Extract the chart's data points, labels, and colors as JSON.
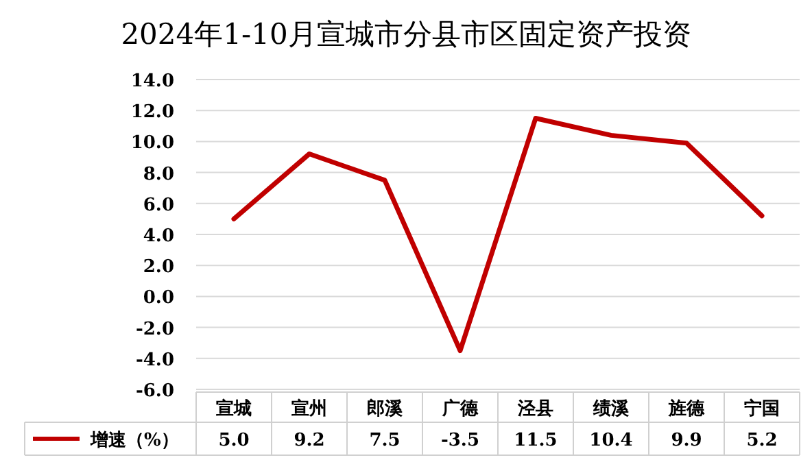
{
  "chart_data": {
    "type": "line",
    "title": "2024年1-10月宣城市分县市区固定资产投资",
    "categories": [
      "宣城",
      "宣州",
      "郎溪",
      "广德",
      "泾县",
      "绩溪",
      "旌德",
      "宁国"
    ],
    "series": [
      {
        "name": "增速（%）",
        "color": "#c00000",
        "values": [
          5.0,
          9.2,
          7.5,
          -3.5,
          11.5,
          10.4,
          9.9,
          5.2
        ],
        "value_labels": [
          "5.0",
          "9.2",
          "7.5",
          "-3.5",
          "11.5",
          "10.4",
          "9.9",
          "5.2"
        ]
      }
    ],
    "ylim": [
      -6,
      14
    ],
    "yticks": [
      {
        "value": -6,
        "label": "-6.0"
      },
      {
        "value": -4,
        "label": "-4.0"
      },
      {
        "value": -2,
        "label": "-2.0"
      },
      {
        "value": 0,
        "label": "0.0"
      },
      {
        "value": 2,
        "label": "2.0"
      },
      {
        "value": 4,
        "label": "4.0"
      },
      {
        "value": 6,
        "label": "6.0"
      },
      {
        "value": 8,
        "label": "8.0"
      },
      {
        "value": 10,
        "label": "10.0"
      },
      {
        "value": 12,
        "label": "12.0"
      },
      {
        "value": 14,
        "label": "14.0"
      }
    ],
    "grid": "y",
    "line_style": "solid",
    "marker": "none",
    "legend": "bottom"
  }
}
